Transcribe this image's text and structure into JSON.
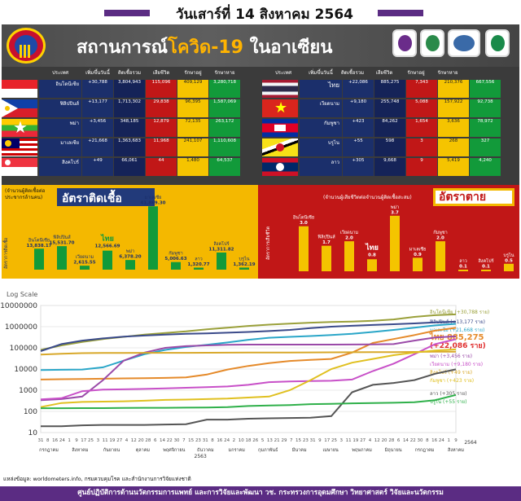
{
  "date_title": "วันเสาร์ที่ 14 สิงหาคม 2564",
  "main_title_prefix": "สถานการณ์",
  "main_title_highlight": "โควิด-19",
  "main_title_suffix": " ในอาเซียน",
  "table_headers": [
    "ประเทศ",
    "เพิ่มขึ้นวันนี้",
    "ติดเชื้อรวม",
    "เสียชีวิต",
    "รักษาอยู่",
    "รักษาหาย"
  ],
  "left_table": [
    {
      "name": "อินโดนีเซีย",
      "new": "+30,788",
      "total": "3,804,943",
      "deaths": "115,096",
      "active": "409,129",
      "recovered": "3,280,718",
      "flag": "indonesia"
    },
    {
      "name": "ฟิลิปปินส์",
      "new": "+13,177",
      "total": "1,713,302",
      "deaths": "29,838",
      "active": "96,395",
      "recovered": "1,587,069",
      "flag": "philippines"
    },
    {
      "name": "พม่า",
      "new": "+3,456",
      "total": "348,185",
      "deaths": "12,879",
      "active": "72,135",
      "recovered": "263,172",
      "flag": "myanmar"
    },
    {
      "name": "มาเลเซีย",
      "new": "+21,668",
      "total": "1,363,683",
      "deaths": "11,968",
      "active": "241,107",
      "recovered": "1,110,608",
      "flag": "malaysia"
    },
    {
      "name": "สิงคโปร์",
      "new": "+49",
      "total": "66,061",
      "deaths": "44",
      "active": "1,480",
      "recovered": "64,537",
      "flag": "singapore"
    }
  ],
  "right_table": [
    {
      "name": "ไทย",
      "new": "+22,086",
      "total": "885,275",
      "deaths": "7,343",
      "active": "210,376",
      "recovered": "667,556",
      "flag": "thailand"
    },
    {
      "name": "เวียดนาม",
      "new": "+9,180",
      "total": "255,748",
      "deaths": "5,088",
      "active": "157,922",
      "recovered": "92,738",
      "flag": "vietnam"
    },
    {
      "name": "กัมพูชา",
      "new": "+423",
      "total": "84,262",
      "deaths": "1,654",
      "active": "3,636",
      "recovered": "78,972",
      "flag": "cambodia"
    },
    {
      "name": "บรูไน",
      "new": "+55",
      "total": "598",
      "deaths": "3",
      "active": "268",
      "recovered": "327",
      "flag": "brunei"
    },
    {
      "name": "ลาว",
      "new": "+305",
      "total": "9,668",
      "deaths": "9",
      "active": "5,419",
      "recovered": "4,240",
      "flag": "laos"
    }
  ],
  "infection_panel": {
    "note": "(จำนวนผู้ติดเชื้อต่อประชากรล้านคน)",
    "title": "อัตราติดเชื้อ",
    "ylabel": "อัตราการติดเชื้อ"
  },
  "death_panel": {
    "note": "(จำนวนผู้เสียชีวิตต่อจำนวนผู้ติดเชื้อสะสม)",
    "title": "อัตราตาย",
    "ylabel": "อัตราการเสียชีวิต"
  },
  "chart_data": [
    {
      "type": "bar",
      "title": "อัตราติดเชื้อ",
      "subtitle": "(จำนวนผู้ติดเชื้อต่อประชากรล้านคน)",
      "ylabel": "อัตราการติดเชื้อ",
      "categories": [
        "อินโดนีเซีย",
        "ฟิลิปปินส์",
        "เวียดนาม",
        "ไทย",
        "พม่า",
        "มาเลเซีย",
        "กัมพูชา",
        "ลาว",
        "สิงคโปร์",
        "บรูไน"
      ],
      "values": [
        13838.17,
        15531.7,
        2615.55,
        12566.69,
        6378.2,
        41869.3,
        5006.63,
        1320.77,
        11311.82,
        1362.19
      ],
      "value_labels": [
        "13,838.17",
        "15,531.70",
        "2,615.55",
        "12,566.69",
        "6,378.20",
        "41,869.30",
        "5,006.63",
        "1,320.77",
        "11,311.82",
        "1,362.19"
      ],
      "ylim": [
        0,
        42000
      ]
    },
    {
      "type": "bar",
      "title": "อัตราตาย",
      "subtitle": "(จำนวนผู้เสียชีวิตต่อจำนวนผู้ติดเชื้อสะสม)",
      "ylabel": "อัตราการเสียชีวิต",
      "categories": [
        "อินโดนีเซีย",
        "ฟิลิปปินส์",
        "เวียดนาม",
        "ไทย",
        "พม่า",
        "มาเลเซีย",
        "กัมพูชา",
        "ลาว",
        "สิงคโปร์",
        "บรูไน"
      ],
      "values": [
        3.0,
        1.7,
        2.0,
        0.8,
        3.7,
        0.9,
        2.0,
        0.1,
        0.1,
        0.5
      ],
      "value_labels": [
        "3.0",
        "1.7",
        "2.0",
        "0.8",
        "3.7",
        "0.9",
        "2.0",
        "0.1",
        "0.1",
        "0.5"
      ],
      "ylim": [
        0,
        3.8
      ]
    },
    {
      "type": "line",
      "title": "Log Scale",
      "yscale": "log",
      "ylim": [
        10,
        10000000
      ],
      "y_ticks": [
        10,
        100,
        1000,
        10000,
        100000,
        1000000,
        10000000
      ],
      "x_tick_labels": [
        "31",
        "8",
        "16",
        "24",
        "1",
        "9",
        "17",
        "25",
        "3",
        "11",
        "19",
        "27",
        "4",
        "12",
        "20",
        "28",
        "6",
        "14",
        "22",
        "30",
        "7",
        "15",
        "23",
        "31",
        "8",
        "16",
        "24",
        "2",
        "10",
        "18",
        "26",
        "5",
        "13",
        "21",
        "29",
        "7",
        "15",
        "23",
        "31",
        "9",
        "17",
        "25",
        "3",
        "11",
        "19",
        "27",
        "4",
        "12",
        "20",
        "28",
        "6",
        "14",
        "22",
        "30",
        "8",
        "16",
        "24",
        "1",
        "9"
      ],
      "month_labels": [
        "กรกฎาคม",
        "สิงหาคม",
        "กันยายน",
        "ตุลาคม",
        "พฤศจิกายน",
        "ธันวาคม",
        "มกราคม",
        "กุมภาพันธ์",
        "มีนาคม",
        "เมษายน",
        "พฤษภาคม",
        "มิถุนายน",
        "กรกฎาคม",
        "สิงหาคม"
      ],
      "year_labels": [
        "2563",
        "2564"
      ],
      "x": [
        0,
        0.05,
        0.1,
        0.15,
        0.2,
        0.25,
        0.3,
        0.35,
        0.4,
        0.45,
        0.5,
        0.55,
        0.6,
        0.65,
        0.7,
        0.75,
        0.8,
        0.85,
        0.9,
        0.95,
        1.0
      ],
      "series": [
        {
          "name": "อินโดนีเซีย (+30,788 ราย)",
          "color": "#9aa03a",
          "values": [
            80000,
            130000,
            190000,
            260000,
            330000,
            420000,
            500000,
            600000,
            750000,
            900000,
            1080000,
            1250000,
            1400000,
            1550000,
            1650000,
            1750000,
            1900000,
            2200000,
            2900000,
            3500000,
            3804943
          ]
        },
        {
          "name": "ฟิลิปปินส์ (+13,177 ราย)",
          "color": "#3a4a8a",
          "values": [
            70000,
            150000,
            220000,
            280000,
            340000,
            380000,
            420000,
            460000,
            480000,
            520000,
            560000,
            620000,
            700000,
            850000,
            1000000,
            1100000,
            1200000,
            1300000,
            1420000,
            1580000,
            1713302
          ]
        },
        {
          "name": "มาเลเซีย (+21,668 ราย)",
          "color": "#2aa6c8",
          "values": [
            9000,
            9200,
            9500,
            12000,
            25000,
            50000,
            80000,
            110000,
            140000,
            180000,
            240000,
            300000,
            330000,
            360000,
            400000,
            460000,
            560000,
            700000,
            900000,
            1150000,
            1363683
          ]
        },
        {
          "name": "ไทย 885,275",
          "color": "#e58a2a",
          "values": [
            3200,
            3300,
            3400,
            3500,
            3600,
            3700,
            3800,
            4000,
            5500,
            9500,
            14000,
            19000,
            24000,
            27000,
            30000,
            60000,
            170000,
            260000,
            400000,
            650000,
            885275
          ]
        },
        {
          "name": "(+22,086 ราย)",
          "color": "#e03030",
          "values": [
            8,
            8,
            8,
            8,
            8,
            8,
            8,
            8,
            8,
            8,
            8,
            8,
            8,
            8,
            8,
            8,
            8,
            8,
            8,
            8,
            8
          ]
        },
        {
          "name": "พม่า (+3,456 ราย)",
          "color": "#9a4aa8",
          "values": [
            340,
            380,
            500,
            3000,
            25000,
            60000,
            100000,
            120000,
            130000,
            140000,
            142000,
            142000,
            142000,
            143000,
            143000,
            144000,
            145000,
            150000,
            220000,
            310000,
            348185
          ]
        },
        {
          "name": "เวียดนาม (+9,180 ราย)",
          "color": "#c850c8",
          "values": [
            370,
            420,
            900,
            1060,
            1100,
            1150,
            1220,
            1300,
            1400,
            1500,
            1800,
            2400,
            2600,
            2700,
            2800,
            3200,
            8000,
            18000,
            50000,
            150000,
            255748
          ]
        },
        {
          "name": "สิงคโปร์ (+49 ราย)",
          "color": "#d8a82a",
          "values": [
            48000,
            53000,
            56000,
            57500,
            58000,
            58100,
            58300,
            58500,
            58800,
            59500,
            59800,
            60000,
            60300,
            61000,
            61500,
            62000,
            62500,
            63000,
            64000,
            65500,
            66061
          ]
        },
        {
          "name": "กัมพูชา (+423 ราย)",
          "color": "#e0c020",
          "values": [
            160,
            250,
            280,
            290,
            300,
            320,
            350,
            360,
            380,
            400,
            450,
            500,
            1000,
            3000,
            10000,
            20000,
            30000,
            45000,
            60000,
            75000,
            84262
          ]
        },
        {
          "name": "ลาว (+305 ราย)",
          "color": "#555555",
          "values": [
            20,
            20,
            22,
            23,
            23,
            23,
            24,
            25,
            41,
            41,
            45,
            47,
            49,
            50,
            60,
            800,
            1800,
            2200,
            3000,
            6000,
            9668
          ]
        },
        {
          "name": "บรูไน (+55 ราย)",
          "color": "#2fb04a",
          "values": [
            141,
            141,
            142,
            142,
            145,
            147,
            148,
            150,
            153,
            160,
            180,
            190,
            200,
            220,
            225,
            240,
            250,
            255,
            270,
            340,
            598
          ]
        }
      ]
    }
  ],
  "source_text": "แหล่งข้อมูล: worldometers.info, กรมควบคุมโรค และสำนักงานการวิจัยแห่งชาติ",
  "footer_text": "ศูนย์ปฏิบัติการด้านนวัตกรรมการแพทย์ และการวิจัยและพัฒนา วช.  กระทรวงการอุดมศึกษา วิทยาศาสตร์ วิจัยและนวัตกรรม",
  "log_label": "Log Scale",
  "colors": {
    "purple": "#5b2c83",
    "navy": "#1b2f6b",
    "red": "#c11717",
    "yellow": "#f4b800",
    "green": "#129a3a"
  }
}
